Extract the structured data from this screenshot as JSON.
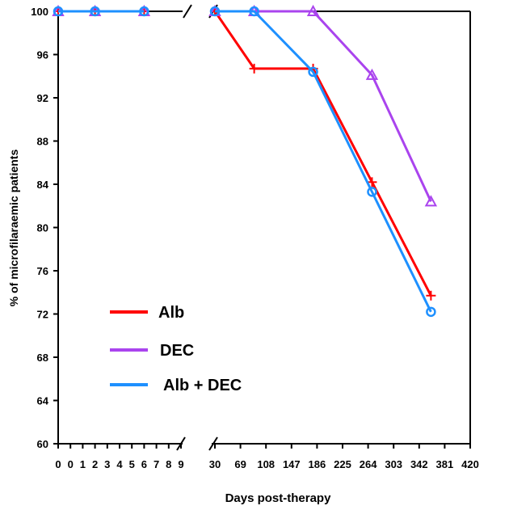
{
  "chart_data": {
    "type": "line",
    "title": "",
    "xlabel": "Days post-therapy",
    "ylabel": "% of microfilaraemic patients",
    "ylim": [
      60,
      100
    ],
    "yticks": [
      60,
      64,
      68,
      72,
      76,
      80,
      84,
      88,
      92,
      96,
      100
    ],
    "x_axis_broken": true,
    "x_segments": [
      {
        "ticks": [
          "0",
          "0",
          "1",
          "2",
          "3",
          "4",
          "5",
          "6",
          "7",
          "8",
          "9"
        ],
        "xlim": [
          -1,
          9
        ]
      },
      {
        "ticks": [
          "30",
          "69",
          "108",
          "147",
          "186",
          "225",
          "264",
          "303",
          "342",
          "381",
          "420"
        ],
        "xlim": [
          30,
          420
        ]
      }
    ],
    "grid": false,
    "legend_position": "lower-left",
    "series": [
      {
        "name": "Alb",
        "color": "#ff0000",
        "marker": "plus",
        "points": [
          {
            "segment": 0,
            "x": -1,
            "y": 100
          },
          {
            "segment": 0,
            "x": 2,
            "y": 100
          },
          {
            "segment": 0,
            "x": 6,
            "y": 100
          },
          {
            "segment": 1,
            "x": 30,
            "y": 100
          },
          {
            "segment": 1,
            "x": 90,
            "y": 94.7
          },
          {
            "segment": 1,
            "x": 180,
            "y": 94.7
          },
          {
            "segment": 1,
            "x": 270,
            "y": 84.2
          },
          {
            "segment": 1,
            "x": 360,
            "y": 73.7
          }
        ]
      },
      {
        "name": "DEC",
        "color": "#aa44ee",
        "marker": "triangle",
        "points": [
          {
            "segment": 0,
            "x": -1,
            "y": 100
          },
          {
            "segment": 0,
            "x": 2,
            "y": 100
          },
          {
            "segment": 0,
            "x": 6,
            "y": 100
          },
          {
            "segment": 1,
            "x": 30,
            "y": 100
          },
          {
            "segment": 1,
            "x": 90,
            "y": 100
          },
          {
            "segment": 1,
            "x": 180,
            "y": 100
          },
          {
            "segment": 1,
            "x": 270,
            "y": 94.1
          },
          {
            "segment": 1,
            "x": 360,
            "y": 82.4
          }
        ]
      },
      {
        "name": "Alb + DEC",
        "color": "#1e90ff",
        "marker": "circle",
        "points": [
          {
            "segment": 0,
            "x": -1,
            "y": 100
          },
          {
            "segment": 0,
            "x": 2,
            "y": 100
          },
          {
            "segment": 0,
            "x": 6,
            "y": 100
          },
          {
            "segment": 1,
            "x": 30,
            "y": 100
          },
          {
            "segment": 1,
            "x": 90,
            "y": 100
          },
          {
            "segment": 1,
            "x": 180,
            "y": 94.4
          },
          {
            "segment": 1,
            "x": 270,
            "y": 83.3
          },
          {
            "segment": 1,
            "x": 360,
            "y": 72.2
          }
        ]
      }
    ]
  }
}
